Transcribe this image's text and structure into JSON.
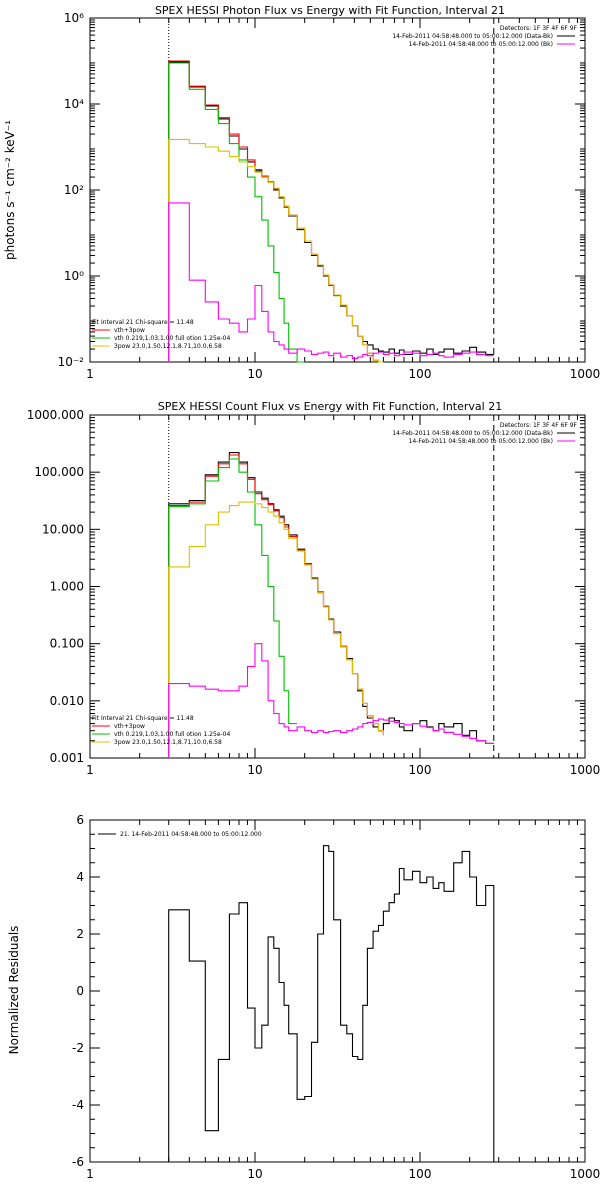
{
  "chart_data": [
    {
      "type": "line",
      "title": "SPEX HESSI Photon Flux vs Energy with Fit Function, Interval 21",
      "xlabel": "",
      "ylabel": "photons s⁻¹ cm⁻² keV⁻¹",
      "xscale": "log",
      "yscale": "log",
      "xlim": [
        1,
        1000
      ],
      "ylim": [
        0.01,
        1000000
      ],
      "x_ticks": [
        "1",
        "10",
        "100",
        "1000"
      ],
      "y_ticks": [
        {
          "v": 0.01,
          "label": "10⁻²"
        },
        {
          "v": 1,
          "label": "10⁰"
        },
        {
          "v": 100,
          "label": "10²"
        },
        {
          "v": 10000,
          "label": "10⁴"
        },
        {
          "v": 1000000,
          "label": "10⁶"
        }
      ],
      "vlines": [
        {
          "x": 3.0,
          "style": "dotted"
        },
        {
          "x": 280,
          "style": "dashed"
        }
      ],
      "header_text": [
        "Detectors: 1F 3F 4F 6F 9F"
      ],
      "legend_top": [
        {
          "text": "14-Feb-2011 04:58:48.000 to 05:00:12.000 (Data-Bk)",
          "color": "#000000"
        },
        {
          "text": "14-Feb-2011 04:58:48.000 to 05:00:12.000 (Bk)",
          "color": "#ff00ff"
        }
      ],
      "legend_bottom_title": "Fit Interval 21    Chi-square = 11.48",
      "legend_bottom": [
        {
          "text": "vth+3pow",
          "color": "#ff0000"
        },
        {
          "text": "vth 0.219,1.03,1.00  full otion 1.25e-04",
          "color": "#00c000"
        },
        {
          "text": "3pow 23.0,1.50,12.1,8.71,10.0,6.58",
          "color": "#e0c000"
        }
      ],
      "series": [
        {
          "name": "14-Feb-2011 04:58:48.000 to 05:00:12.000 (Data-Bk)",
          "color": "#000000",
          "edges": [
            3,
            4,
            5,
            6,
            7,
            8,
            9,
            10,
            11,
            12,
            13,
            14,
            15,
            16,
            18,
            20,
            22,
            24,
            26,
            28,
            30,
            33,
            36,
            39,
            42,
            45,
            48,
            52,
            56,
            60,
            65,
            70,
            75,
            80,
            90,
            100,
            110,
            120,
            130,
            140,
            160,
            180,
            200,
            220,
            250,
            280
          ],
          "values": [
            95000,
            25000,
            9000,
            4500,
            1800,
            900,
            450,
            280,
            200,
            150,
            100,
            65,
            40,
            25,
            12,
            6,
            3,
            1.7,
            1.0,
            0.6,
            0.35,
            0.2,
            0.12,
            0.07,
            0.04,
            0.03,
            0.025,
            0.02,
            0.018,
            0.017,
            0.02,
            0.016,
            0.019,
            0.015,
            0.018,
            0.016,
            0.02,
            0.015,
            0.017,
            0.02,
            0.016,
            0.018,
            0.022,
            0.017,
            0.015
          ]
        },
        {
          "name": "vth+3pow",
          "color": "#ff0000",
          "edges": [
            3,
            4,
            5,
            6,
            7,
            8,
            9,
            10,
            11,
            12,
            13,
            14,
            15,
            16,
            18,
            20,
            22,
            24,
            26,
            28,
            30,
            33,
            36,
            39,
            42,
            45,
            48,
            52,
            56,
            60
          ],
          "values": [
            100000,
            26000,
            9500,
            4800,
            2000,
            1000,
            500,
            300,
            210,
            155,
            105,
            68,
            42,
            26,
            13,
            6.5,
            3.2,
            1.8,
            1.05,
            0.62,
            0.36,
            0.21,
            0.12,
            0.07,
            0.04,
            0.025,
            0.016,
            0.011,
            0.009,
            0.008
          ]
        },
        {
          "name": "vth 0.219,1.03,1.00  full otion 1.25e-04",
          "color": "#00c000",
          "edges": [
            3,
            4,
            5,
            6,
            7,
            8,
            9,
            10,
            11,
            12,
            13,
            14,
            15,
            16,
            18,
            20
          ],
          "values": [
            90000,
            22000,
            7500,
            3500,
            1200,
            500,
            200,
            70,
            20,
            5,
            1.2,
            0.3,
            0.08,
            0.02,
            0.005
          ]
        },
        {
          "name": "3pow 23.0,1.50,12.1,8.71,10.0,6.58",
          "color": "#e0c000",
          "edges": [
            3,
            4,
            5,
            6,
            7,
            8,
            9,
            10,
            11,
            12,
            13,
            14,
            15,
            16,
            18,
            20,
            22,
            24,
            26,
            28,
            30,
            33,
            36,
            39,
            42,
            45,
            48,
            52,
            56,
            60
          ],
          "values": [
            1500,
            1200,
            1000,
            800,
            600,
            450,
            350,
            260,
            200,
            150,
            110,
            70,
            42,
            26,
            13,
            6.5,
            3.2,
            1.8,
            1.05,
            0.62,
            0.36,
            0.21,
            0.12,
            0.07,
            0.04,
            0.025,
            0.016,
            0.011,
            0.009,
            0.008
          ]
        },
        {
          "name": "14-Feb-2011 04:58:48.000 to 05:00:12.000 (Bk)",
          "color": "#ff00ff",
          "edges": [
            3,
            4,
            5,
            6,
            7,
            8,
            9,
            10,
            11,
            12,
            13,
            14,
            15,
            16,
            18,
            20,
            22,
            24,
            26,
            28,
            30,
            33,
            36,
            39,
            42,
            45,
            48,
            52,
            56,
            60,
            65,
            70,
            75,
            80,
            90,
            100,
            110,
            120,
            130,
            140,
            160,
            180,
            200,
            220,
            250,
            280
          ],
          "values": [
            50,
            0.8,
            0.25,
            0.1,
            0.08,
            0.05,
            0.1,
            0.6,
            0.15,
            0.05,
            0.03,
            0.025,
            0.02,
            0.016,
            0.02,
            0.018,
            0.015,
            0.016,
            0.017,
            0.014,
            0.016,
            0.013,
            0.014,
            0.012,
            0.013,
            0.015,
            0.014,
            0.016,
            0.017,
            0.015,
            0.016,
            0.014,
            0.015,
            0.017,
            0.016,
            0.014,
            0.015,
            0.016,
            0.014,
            0.013,
            0.015,
            0.016,
            0.017,
            0.015,
            0.014
          ]
        }
      ]
    },
    {
      "type": "line",
      "title": "SPEX HESSI Count Flux vs Energy with Fit Function, Interval 21",
      "xlabel": "",
      "ylabel": "",
      "xscale": "log",
      "yscale": "log",
      "xlim": [
        1,
        1000
      ],
      "ylim": [
        0.001,
        1000
      ],
      "x_ticks": [
        "1",
        "10",
        "100",
        "1000"
      ],
      "y_ticks": [
        {
          "v": 0.001,
          "label": "0.001"
        },
        {
          "v": 0.01,
          "label": "0.010"
        },
        {
          "v": 0.1,
          "label": "0.100"
        },
        {
          "v": 1,
          "label": "1.000"
        },
        {
          "v": 10,
          "label": "10.000"
        },
        {
          "v": 100,
          "label": "100.000"
        },
        {
          "v": 1000,
          "label": "1000.000"
        }
      ],
      "vlines": [
        {
          "x": 3.0,
          "style": "dotted"
        },
        {
          "x": 280,
          "style": "dashed"
        }
      ],
      "header_text": [
        "Detectors: 1F 3F 4F 6F 9F"
      ],
      "legend_top": [
        {
          "text": "14-Feb-2011 04:58:48.000 to 05:00:12.000 (Data-Bk)",
          "color": "#000000"
        },
        {
          "text": "14-Feb-2011 04:58:48.000 to 05:00:12.000 (Bk)",
          "color": "#ff00ff"
        }
      ],
      "legend_bottom_title": "Fit Interval 21    Chi-square = 11.48",
      "legend_bottom": [
        {
          "text": "vth+3pow",
          "color": "#ff0000"
        },
        {
          "text": "vth 0.219,1.03,1.00  full otion 1.25e-04",
          "color": "#00c000"
        },
        {
          "text": "3pow 23.0,1.50,12.1,8.71,10.0,6.58",
          "color": "#e0c000"
        }
      ],
      "series": [
        {
          "name": "14-Feb-2011 04:58:48.000 to 05:00:12.000 (Data-Bk)",
          "color": "#000000",
          "edges": [
            3,
            4,
            5,
            6,
            7,
            8,
            9,
            10,
            11,
            12,
            13,
            14,
            15,
            16,
            18,
            20,
            22,
            24,
            26,
            28,
            30,
            33,
            36,
            39,
            42,
            45,
            48,
            52,
            56,
            60,
            65,
            70,
            75,
            80,
            90,
            100,
            110,
            120,
            130,
            140,
            160,
            180,
            200,
            220,
            250,
            280
          ],
          "values": [
            28,
            32,
            90,
            150,
            220,
            150,
            80,
            45,
            35,
            28,
            22,
            17,
            12,
            8,
            4.5,
            2.5,
            1.4,
            0.8,
            0.45,
            0.27,
            0.16,
            0.09,
            0.055,
            0.03,
            0.015,
            0.008,
            0.005,
            0.0035,
            0.003,
            0.004,
            0.005,
            0.0045,
            0.0035,
            0.003,
            0.004,
            0.0045,
            0.0035,
            0.003,
            0.004,
            0.0035,
            0.004,
            0.0025,
            0.003,
            0.002,
            0.0018
          ]
        },
        {
          "name": "vth+3pow",
          "color": "#ff0000",
          "edges": [
            3,
            4,
            5,
            6,
            7,
            8,
            9,
            10,
            11,
            12,
            13,
            14,
            15,
            16,
            18,
            20,
            22,
            24,
            26,
            28,
            30,
            33,
            36,
            39,
            42,
            45,
            48,
            52,
            56,
            60
          ],
          "values": [
            26,
            30,
            85,
            140,
            200,
            140,
            75,
            42,
            33,
            27,
            21,
            16,
            11,
            7.5,
            4.3,
            2.4,
            1.35,
            0.78,
            0.44,
            0.26,
            0.15,
            0.088,
            0.052,
            0.03,
            0.016,
            0.009,
            0.0055,
            0.004,
            0.003,
            0.0025
          ]
        },
        {
          "name": "vth 0.219,1.03,1.00  full otion 1.25e-04",
          "color": "#00c000",
          "edges": [
            3,
            4,
            5,
            6,
            7,
            8,
            9,
            10,
            11,
            12,
            13,
            14,
            15,
            16,
            18
          ],
          "values": [
            25,
            28,
            70,
            120,
            170,
            100,
            45,
            12,
            3.5,
            1.0,
            0.25,
            0.06,
            0.015,
            0.004
          ]
        },
        {
          "name": "3pow 23.0,1.50,12.1,8.71,10.0,6.58",
          "color": "#e0c000",
          "edges": [
            3,
            4,
            5,
            6,
            7,
            8,
            9,
            10,
            11,
            12,
            13,
            14,
            15,
            16,
            18,
            20,
            22,
            24,
            26,
            28,
            30,
            33,
            36,
            39,
            42,
            45,
            48,
            52,
            56,
            60
          ],
          "values": [
            2.2,
            5,
            12,
            20,
            26,
            30,
            30,
            28,
            24,
            20,
            17,
            13,
            10,
            7,
            4.2,
            2.4,
            1.35,
            0.78,
            0.44,
            0.26,
            0.15,
            0.088,
            0.052,
            0.03,
            0.016,
            0.009,
            0.0055,
            0.004,
            0.003,
            0.0025
          ]
        },
        {
          "name": "14-Feb-2011 04:58:48.000 to 05:00:12.000 (Bk)",
          "color": "#ff00ff",
          "edges": [
            3,
            4,
            5,
            6,
            7,
            8,
            9,
            10,
            11,
            12,
            13,
            14,
            15,
            16,
            18,
            20,
            22,
            24,
            26,
            28,
            30,
            33,
            36,
            39,
            42,
            45,
            48,
            52,
            56,
            60,
            65,
            70,
            75,
            80,
            90,
            100,
            110,
            120,
            130,
            140,
            160,
            180,
            200,
            220,
            250,
            280
          ],
          "values": [
            0.02,
            0.018,
            0.016,
            0.015,
            0.015,
            0.018,
            0.04,
            0.1,
            0.05,
            0.01,
            0.006,
            0.004,
            0.0035,
            0.003,
            0.0035,
            0.003,
            0.0028,
            0.003,
            0.0028,
            0.0029,
            0.003,
            0.0028,
            0.003,
            0.0032,
            0.0035,
            0.004,
            0.0042,
            0.0045,
            0.0048,
            0.0046,
            0.0044,
            0.0042,
            0.004,
            0.0038,
            0.004,
            0.0036,
            0.0034,
            0.003,
            0.0032,
            0.0028,
            0.0026,
            0.0024,
            0.0022,
            0.002,
            0.0018
          ]
        }
      ]
    },
    {
      "type": "line",
      "title": "",
      "xlabel": "",
      "ylabel": "Normalized Residuals",
      "xscale": "log",
      "yscale": "linear",
      "xlim": [
        1,
        1000
      ],
      "ylim": [
        -6,
        6
      ],
      "x_ticks": [
        "1",
        "10",
        "100",
        "1000"
      ],
      "y_ticks": [
        {
          "v": -6,
          "label": "-6"
        },
        {
          "v": -4,
          "label": "-4"
        },
        {
          "v": -2,
          "label": "-2"
        },
        {
          "v": 0,
          "label": "0"
        },
        {
          "v": 2,
          "label": "2"
        },
        {
          "v": 4,
          "label": "4"
        },
        {
          "v": 6,
          "label": "6"
        }
      ],
      "vlines": [],
      "zero_line": false,
      "legend_top_left": {
        "text": "21. 14-Feb-2011 04:58:48.000 to 05:00:12.000",
        "color": "#000000"
      },
      "series": [
        {
          "name": "21. 14-Feb-2011 04:58:48.000 to 05:00:12.000",
          "color": "#000000",
          "edges": [
            3,
            4,
            5,
            6,
            7,
            8,
            9,
            10,
            11,
            12,
            13,
            14,
            15,
            16,
            18,
            20,
            22,
            24,
            26,
            28,
            30,
            33,
            36,
            39,
            42,
            45,
            48,
            52,
            56,
            60,
            65,
            70,
            75,
            80,
            90,
            100,
            110,
            120,
            130,
            140,
            160,
            180,
            200,
            220,
            250,
            280
          ],
          "values": [
            2.85,
            1.05,
            -4.9,
            -2.4,
            2.7,
            3.1,
            -0.6,
            -2.0,
            -1.2,
            1.9,
            1.5,
            0.3,
            -0.5,
            -1.5,
            -3.8,
            -3.7,
            -1.8,
            2.0,
            5.1,
            4.9,
            2.5,
            -1.2,
            -1.5,
            -2.3,
            -2.4,
            -0.5,
            1.5,
            2.1,
            2.3,
            2.8,
            3.1,
            3.4,
            4.3,
            3.9,
            4.2,
            3.8,
            4.0,
            3.6,
            3.8,
            3.5,
            4.5,
            4.9,
            4.0,
            3.0,
            3.7
          ]
        }
      ]
    }
  ]
}
